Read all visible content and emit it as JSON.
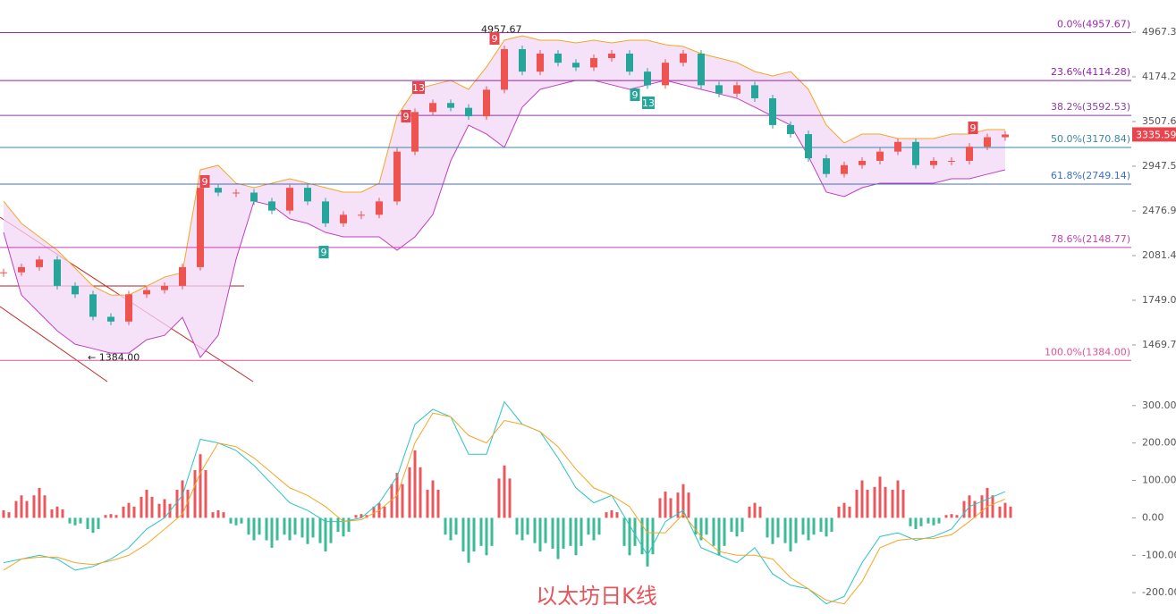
{
  "chart_data": {
    "type": "candlestick",
    "title": "以太坊日K线",
    "log_scale": true,
    "ylim": [
      1261,
      5630
    ],
    "yticks": [
      {
        "value": 4967.3,
        "label": "4967.30"
      },
      {
        "value": 4174.2,
        "label": "4174.20"
      },
      {
        "value": 3507.65,
        "label": "3507.65"
      },
      {
        "value": 2947.59,
        "label": "2947.59"
      },
      {
        "value": 2476.93,
        "label": "2476.93"
      },
      {
        "value": 2081.43,
        "label": "2081.43"
      },
      {
        "value": 1749.07,
        "label": "1749.07"
      },
      {
        "value": 1469.79,
        "label": "1469.79"
      }
    ],
    "up_color": "#ef5350",
    "down_color": "#26a69a",
    "close": [
      1950,
      1990,
      2050,
      1850,
      1790,
      1640,
      1610,
      1790,
      1820,
      1850,
      1990,
      2710,
      2660,
      2660,
      2570,
      2480,
      2710,
      2570,
      2360,
      2440,
      2440,
      2570,
      3120,
      3640,
      3770,
      3700,
      3580,
      3970,
      4650,
      4260,
      4570,
      4410,
      4330,
      4490,
      4570,
      4260,
      4040,
      4410,
      4570,
      4040,
      3910,
      4040,
      3840,
      3460,
      3340,
      3040,
      2860,
      2960,
      3010,
      3120,
      3240,
      2960,
      3010,
      3010,
      3180,
      3300,
      3335
    ],
    "bollinger_upper": [
      2573,
      2359,
      2239,
      2125,
      1982,
      1848,
      1785,
      1785,
      1848,
      1914,
      1948,
      2907,
      2958,
      2759,
      2711,
      2759,
      2807,
      2759,
      2711,
      2665,
      2665,
      2759,
      3582,
      3976,
      4046,
      4117,
      3976,
      4337,
      4814,
      4898,
      4814,
      4814,
      4764,
      4814,
      4764,
      4814,
      4814,
      4731,
      4698,
      4569,
      4490,
      4413,
      4262,
      4189,
      4262,
      3976,
      3459,
      3227,
      3341,
      3341,
      3283,
      3283,
      3283,
      3341,
      3341,
      3400,
      3400
    ],
    "bollinger_lower": [
      2278,
      1785,
      1665,
      1553,
      1474,
      1449,
      1424,
      1424,
      1500,
      1526,
      1636,
      1400,
      1526,
      2052,
      2573,
      2529,
      2400,
      2359,
      2278,
      2239,
      2239,
      2239,
      2125,
      2239,
      2442,
      3010,
      3459,
      3341,
      3171,
      3709,
      3976,
      4046,
      4117,
      4117,
      4046,
      3976,
      4046,
      4117,
      4046,
      3976,
      3908,
      3840,
      3709,
      3582,
      3459,
      3063,
      2665,
      2619,
      2711,
      2759,
      2759,
      2759,
      2759,
      2807,
      2807,
      2857,
      2907
    ],
    "upper_color": "#f5a623",
    "lower_color": "#c03fc0",
    "band_fill": "#f3d8f6",
    "fib_levels": [
      {
        "value": 4957.67,
        "label": "0.0%(4957.67)",
        "color": "#9c27b0"
      },
      {
        "value": 4114.28,
        "label": "23.6%(4114.28)",
        "color": "#8e24aa"
      },
      {
        "value": 3592.53,
        "label": "38.2%(3592.53)",
        "color": "#8e3aa8"
      },
      {
        "value": 3170.84,
        "label": "50.0%(3170.84)",
        "color": "#3a86a8"
      },
      {
        "value": 2749.14,
        "label": "61.8%(2749.14)",
        "color": "#3f6fc5"
      },
      {
        "value": 2148.77,
        "label": "78.6%(2148.77)",
        "color": "#c740b0"
      },
      {
        "value": 1384.0,
        "label": "100.0%(1384.00)",
        "color": "#e0509a"
      }
    ],
    "annotations": [
      {
        "value": 4957.67,
        "label": "4957.67"
      },
      {
        "value": 1384.0,
        "label": "← 1384.00"
      }
    ],
    "last_price": {
      "value": 3335.59,
      "label": "3335.59",
      "color": "#e8454f"
    },
    "td_labels": [
      "9",
      "9",
      "13",
      "9",
      "9",
      "9",
      "13",
      "9"
    ],
    "macd": {
      "ylim": [
        -257,
        352
      ],
      "yticks": [
        {
          "value": 300,
          "label": "300.00"
        },
        {
          "value": 200,
          "label": "200.00"
        },
        {
          "value": 100,
          "label": "100.00"
        },
        {
          "value": 0,
          "label": "0.00"
        },
        {
          "value": -100,
          "label": "-100.00"
        },
        {
          "value": -200,
          "label": "-200.00"
        }
      ],
      "histogram": [
        20,
        60,
        80,
        30,
        -20,
        -40,
        10,
        40,
        75,
        50,
        100,
        170,
        20,
        -20,
        -60,
        -80,
        -60,
        -70,
        -90,
        -50,
        10,
        40,
        120,
        180,
        100,
        -60,
        -120,
        -100,
        140,
        -60,
        -90,
        -110,
        -100,
        -60,
        20,
        -100,
        -130,
        70,
        90,
        -60,
        -100,
        -50,
        40,
        -70,
        -90,
        -60,
        -50,
        40,
        100,
        110,
        100,
        -30,
        -20,
        10,
        60,
        80,
        40
      ],
      "dif": [
        -120,
        -110,
        -100,
        -110,
        -140,
        -130,
        -110,
        -80,
        -30,
        0,
        60,
        210,
        200,
        180,
        140,
        90,
        40,
        20,
        -10,
        -10,
        0,
        40,
        110,
        250,
        290,
        270,
        170,
        170,
        310,
        250,
        230,
        160,
        80,
        40,
        60,
        -20,
        -100,
        -10,
        20,
        -80,
        -100,
        -120,
        -80,
        -150,
        -180,
        -190,
        -230,
        -210,
        -120,
        -50,
        -40,
        -60,
        -50,
        -30,
        30,
        50,
        70
      ],
      "dea": [
        -140,
        -110,
        -105,
        -105,
        -120,
        -125,
        -115,
        -100,
        -70,
        -30,
        10,
        120,
        200,
        190,
        160,
        120,
        80,
        60,
        30,
        -10,
        -5,
        20,
        60,
        200,
        280,
        270,
        220,
        200,
        260,
        250,
        230,
        190,
        130,
        80,
        60,
        30,
        -40,
        -40,
        10,
        -50,
        -90,
        -100,
        -100,
        -110,
        -160,
        -190,
        -220,
        -230,
        -170,
        -80,
        -60,
        -55,
        -55,
        -45,
        -10,
        30,
        50
      ],
      "up_color": "#e8585c",
      "down_color": "#3dbb94",
      "dif_color": "#2bc4c4",
      "dea_color": "#f5a623"
    }
  }
}
